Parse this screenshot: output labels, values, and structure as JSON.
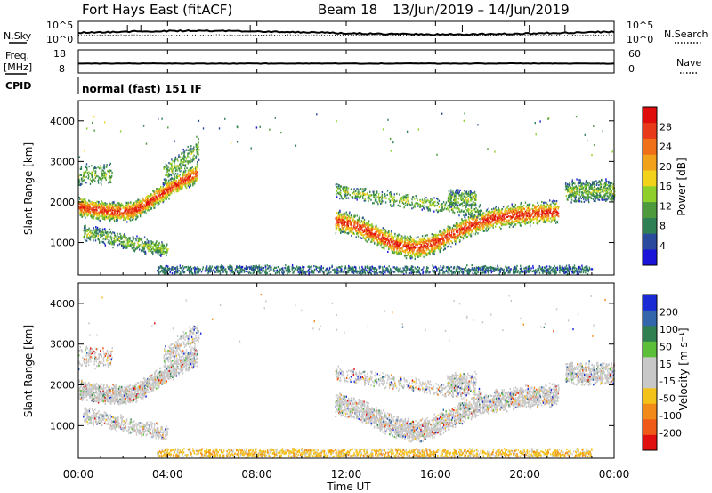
{
  "header": {
    "title": "Fort Hays East (fitACF)",
    "beam": "Beam 18",
    "date_range": "13/Jun/2019 – 14/Jun/2019"
  },
  "params": {
    "nsky_label": "N.Sky",
    "nsky_ticks": [
      "10^5",
      "10^0"
    ],
    "nsearch_label": "N.Search",
    "nsearch_ticks": [
      "10^5",
      "10^0"
    ],
    "freq_label_1": "Freq.",
    "freq_label_2": "[MHz]",
    "freq_ticks": [
      "18",
      "8"
    ],
    "nave_label": "Nave",
    "nave_ticks": [
      "60",
      "0"
    ],
    "cpid_label": "CPID",
    "mode_text": "normal (fast) 151 IF"
  },
  "chart_data": [
    {
      "type": "heatmap",
      "name": "power",
      "ylabel": "Slant Range [km]",
      "ylim": [
        200,
        4500
      ],
      "yticks": [
        1000,
        2000,
        3000,
        4000
      ],
      "xlim_hours": [
        0,
        24
      ],
      "colorbar": {
        "label": "Power [dB]",
        "ticks": [
          "4",
          "8",
          "12",
          "16",
          "20",
          "24",
          "28"
        ],
        "colors": [
          "#1a14d8",
          "#2a4a9e",
          "#2f7f55",
          "#4c9a3c",
          "#8fcf2a",
          "#f2d21a",
          "#f2a11a",
          "#f07018",
          "#e8391a",
          "#e00c0c"
        ]
      }
    },
    {
      "type": "heatmap",
      "name": "velocity",
      "ylabel": "Slant Range [km]",
      "ylim": [
        200,
        4500
      ],
      "yticks": [
        1000,
        2000,
        3000,
        4000
      ],
      "xlim_hours": [
        0,
        24
      ],
      "colorbar": {
        "label": "Velocity [m s⁻¹]",
        "ticks": [
          "200",
          "100",
          "50",
          "15",
          "-15",
          "-50",
          "-100",
          "-200"
        ],
        "colors": [
          "#1a2bd6",
          "#3366aa",
          "#2f7f50",
          "#5cbf3a",
          "#c8c8c8",
          "#c8c8c8",
          "#f2c21a",
          "#f28a1a",
          "#ef5a18",
          "#e01010"
        ]
      }
    }
  ],
  "time_axis": {
    "tick_labels": [
      "00:00",
      "04:00",
      "08:00",
      "12:00",
      "16:00",
      "20:00",
      "00:00"
    ],
    "label": "Time UT"
  }
}
